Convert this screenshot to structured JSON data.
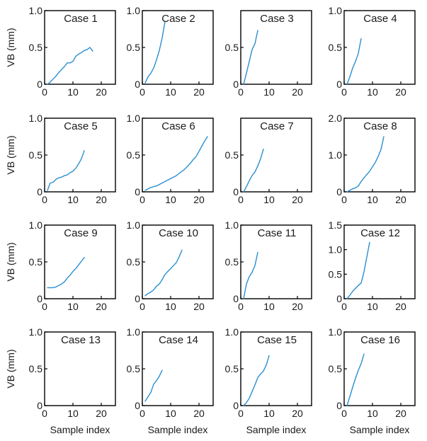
{
  "style": {
    "line_color": "#2a8fcf",
    "axis_color": "#000000",
    "text_color": "#1a1a1a"
  },
  "figure": {
    "ylabel": "VB (mm)",
    "xlabel": "Sample index"
  },
  "chart_data": [
    {
      "type": "line",
      "title": "Case 1",
      "xlim": [
        0,
        25
      ],
      "ylim": [
        0,
        1.0
      ],
      "xticks": [
        0,
        10,
        20
      ],
      "yticks": [
        0,
        0.5,
        1.0
      ],
      "ytick_labels": [
        "0",
        "0.5",
        "1.0"
      ],
      "series": [
        {
          "x": [
            1,
            2,
            3,
            4,
            5,
            6,
            7,
            8,
            9,
            10,
            11,
            12,
            13,
            14,
            15,
            16,
            17
          ],
          "y": [
            0.0,
            0.03,
            0.07,
            0.11,
            0.16,
            0.2,
            0.24,
            0.29,
            0.29,
            0.31,
            0.38,
            0.41,
            0.43,
            0.46,
            0.47,
            0.5,
            0.45
          ]
        }
      ]
    },
    {
      "type": "line",
      "title": "Case 2",
      "xlim": [
        0,
        25
      ],
      "ylim": [
        0,
        1.0
      ],
      "xticks": [
        0,
        10,
        20
      ],
      "yticks": [
        0,
        0.5,
        1.0
      ],
      "ytick_labels": [
        "0",
        "0.5",
        "1.0"
      ],
      "series": [
        {
          "x": [
            1,
            2,
            3,
            4,
            5,
            6,
            7,
            8
          ],
          "y": [
            0.02,
            0.1,
            0.15,
            0.22,
            0.33,
            0.46,
            0.63,
            0.85
          ]
        }
      ]
    },
    {
      "type": "line",
      "title": "Case 3",
      "xlim": [
        0,
        25
      ],
      "ylim": [
        0,
        1.0
      ],
      "xticks": [
        0,
        10,
        20
      ],
      "yticks": [
        0,
        0.5
      ],
      "ytick_labels": [
        "0",
        "0.5"
      ],
      "series": [
        {
          "x": [
            1,
            2,
            3,
            4,
            5,
            6
          ],
          "y": [
            0.0,
            0.15,
            0.31,
            0.47,
            0.55,
            0.73
          ]
        }
      ]
    },
    {
      "type": "line",
      "title": "Case 4",
      "xlim": [
        0,
        25
      ],
      "ylim": [
        0,
        1.0
      ],
      "xticks": [
        0,
        10,
        20
      ],
      "yticks": [
        0,
        0.5,
        1.0
      ],
      "ytick_labels": [
        "0",
        "0.5",
        "1.0"
      ],
      "series": [
        {
          "x": [
            1,
            2,
            3,
            4,
            5,
            6
          ],
          "y": [
            0.0,
            0.1,
            0.22,
            0.31,
            0.42,
            0.62
          ]
        }
      ]
    },
    {
      "type": "line",
      "title": "Case 5",
      "xlim": [
        0,
        25
      ],
      "ylim": [
        0,
        1.0
      ],
      "xticks": [
        0,
        10,
        20
      ],
      "yticks": [
        0,
        0.5,
        1.0
      ],
      "ytick_labels": [
        "0",
        "0.5",
        "1.0"
      ],
      "series": [
        {
          "x": [
            1,
            2,
            3,
            4,
            5,
            6,
            7,
            8,
            9,
            10,
            11,
            12,
            13,
            14
          ],
          "y": [
            0.02,
            0.12,
            0.13,
            0.17,
            0.19,
            0.2,
            0.22,
            0.23,
            0.26,
            0.28,
            0.32,
            0.38,
            0.45,
            0.56
          ]
        }
      ]
    },
    {
      "type": "line",
      "title": "Case 6",
      "xlim": [
        0,
        25
      ],
      "ylim": [
        0,
        1.0
      ],
      "xticks": [
        0,
        10,
        20
      ],
      "yticks": [
        0,
        0.5,
        1.0
      ],
      "ytick_labels": [
        "0",
        "0.5",
        "1.0"
      ],
      "series": [
        {
          "x": [
            1,
            2,
            3,
            4,
            5,
            6,
            7,
            8,
            9,
            10,
            11,
            12,
            13,
            14,
            15,
            16,
            17,
            18,
            19,
            20,
            21,
            22,
            23
          ],
          "y": [
            0.02,
            0.04,
            0.06,
            0.07,
            0.08,
            0.1,
            0.12,
            0.14,
            0.16,
            0.18,
            0.2,
            0.22,
            0.25,
            0.28,
            0.31,
            0.35,
            0.39,
            0.44,
            0.48,
            0.55,
            0.62,
            0.69,
            0.75
          ]
        }
      ]
    },
    {
      "type": "line",
      "title": "Case 7",
      "xlim": [
        0,
        25
      ],
      "ylim": [
        0,
        1.0
      ],
      "xticks": [
        0,
        10,
        20
      ],
      "yticks": [
        0,
        0.5
      ],
      "ytick_labels": [
        "0",
        "0.5"
      ],
      "series": [
        {
          "x": [
            1,
            2,
            3,
            4,
            5,
            6,
            7,
            8
          ],
          "y": [
            0.0,
            0.07,
            0.15,
            0.22,
            0.27,
            0.35,
            0.45,
            0.58
          ]
        }
      ]
    },
    {
      "type": "line",
      "title": "Case 8",
      "xlim": [
        0,
        25
      ],
      "ylim": [
        0,
        2.0
      ],
      "xticks": [
        0,
        10,
        20
      ],
      "yticks": [
        0,
        1.0,
        2.0
      ],
      "ytick_labels": [
        "0",
        "1.0",
        "2.0"
      ],
      "series": [
        {
          "x": [
            1,
            2,
            3,
            4,
            5,
            6,
            7,
            8,
            9,
            10,
            11,
            12,
            13,
            14
          ],
          "y": [
            0.0,
            0.04,
            0.08,
            0.11,
            0.16,
            0.28,
            0.38,
            0.47,
            0.56,
            0.68,
            0.8,
            0.96,
            1.15,
            1.5
          ]
        }
      ]
    },
    {
      "type": "line",
      "title": "Case 9",
      "xlim": [
        0,
        25
      ],
      "ylim": [
        0,
        1.0
      ],
      "xticks": [
        0,
        10,
        20
      ],
      "yticks": [
        0,
        0.5,
        1.0
      ],
      "ytick_labels": [
        "0",
        "0.5",
        "1.0"
      ],
      "series": [
        {
          "x": [
            1,
            2,
            3,
            4,
            5,
            6,
            7,
            8,
            9,
            10,
            11,
            12,
            13,
            14
          ],
          "y": [
            0.15,
            0.15,
            0.15,
            0.16,
            0.18,
            0.2,
            0.23,
            0.28,
            0.32,
            0.37,
            0.41,
            0.46,
            0.51,
            0.56
          ]
        }
      ]
    },
    {
      "type": "line",
      "title": "Case 10",
      "xlim": [
        0,
        25
      ],
      "ylim": [
        0,
        1.0
      ],
      "xticks": [
        0,
        10,
        20
      ],
      "yticks": [
        0,
        0.5,
        1.0
      ],
      "ytick_labels": [
        "0",
        "0.5",
        "1.0"
      ],
      "series": [
        {
          "x": [
            1,
            2,
            3,
            4,
            5,
            6,
            7,
            8,
            9,
            10,
            11,
            12,
            13,
            14
          ],
          "y": [
            0.04,
            0.07,
            0.09,
            0.12,
            0.17,
            0.2,
            0.26,
            0.33,
            0.37,
            0.41,
            0.45,
            0.49,
            0.57,
            0.66
          ]
        }
      ]
    },
    {
      "type": "line",
      "title": "Case 11",
      "xlim": [
        0,
        25
      ],
      "ylim": [
        0,
        1.0
      ],
      "xticks": [
        0,
        10,
        20
      ],
      "yticks": [
        0,
        0.5,
        1.0
      ],
      "ytick_labels": [
        "0",
        "0.5",
        "1.0"
      ],
      "series": [
        {
          "x": [
            1,
            2,
            3,
            4,
            5,
            6
          ],
          "y": [
            0.0,
            0.2,
            0.3,
            0.36,
            0.45,
            0.63
          ]
        }
      ]
    },
    {
      "type": "line",
      "title": "Case 12",
      "xlim": [
        0,
        25
      ],
      "ylim": [
        0,
        1.5
      ],
      "xticks": [
        0,
        10,
        20
      ],
      "yticks": [
        0,
        0.5,
        1.0,
        1.5
      ],
      "ytick_labels": [
        "0",
        "0.5",
        "1.0",
        "1.5"
      ],
      "series": [
        {
          "x": [
            1,
            2,
            3,
            4,
            5,
            6,
            7,
            8,
            9
          ],
          "y": [
            0.0,
            0.07,
            0.15,
            0.21,
            0.27,
            0.32,
            0.55,
            0.85,
            1.15
          ]
        }
      ]
    },
    {
      "type": "line",
      "title": "Case 13",
      "xlim": [
        0,
        25
      ],
      "ylim": [
        0,
        1.0
      ],
      "xticks": [
        0,
        10,
        20
      ],
      "yticks": [
        0,
        0.5,
        1.0
      ],
      "ytick_labels": [
        "0",
        "0.5",
        "1.0"
      ],
      "series": []
    },
    {
      "type": "line",
      "title": "Case 14",
      "xlim": [
        0,
        25
      ],
      "ylim": [
        0,
        1.0
      ],
      "xticks": [
        0,
        10,
        20
      ],
      "yticks": [
        0,
        0.5,
        1.0
      ],
      "ytick_labels": [
        "0",
        "0.5",
        "1.0"
      ],
      "series": [
        {
          "x": [
            1,
            2,
            3,
            4,
            5,
            6,
            7
          ],
          "y": [
            0.06,
            0.12,
            0.18,
            0.29,
            0.34,
            0.4,
            0.48
          ]
        }
      ]
    },
    {
      "type": "line",
      "title": "Case 15",
      "xlim": [
        0,
        25
      ],
      "ylim": [
        0,
        1.0
      ],
      "xticks": [
        0,
        10,
        20
      ],
      "yticks": [
        0,
        0.5,
        1.0
      ],
      "ytick_labels": [
        "0",
        "0.5",
        "1.0"
      ],
      "series": [
        {
          "x": [
            1,
            2,
            3,
            4,
            5,
            6,
            7,
            8,
            9,
            10
          ],
          "y": [
            0.0,
            0.04,
            0.1,
            0.19,
            0.28,
            0.38,
            0.43,
            0.47,
            0.55,
            0.68
          ]
        }
      ]
    },
    {
      "type": "line",
      "title": "Case 16",
      "xlim": [
        0,
        25
      ],
      "ylim": [
        0,
        1.0
      ],
      "xticks": [
        0,
        10,
        20
      ],
      "yticks": [
        0,
        0.5,
        1.0
      ],
      "ytick_labels": [
        "0",
        "0.5",
        "1.0"
      ],
      "series": [
        {
          "x": [
            1,
            2,
            3,
            4,
            5,
            6,
            7
          ],
          "y": [
            0.0,
            0.12,
            0.25,
            0.37,
            0.48,
            0.57,
            0.7
          ]
        }
      ]
    }
  ]
}
